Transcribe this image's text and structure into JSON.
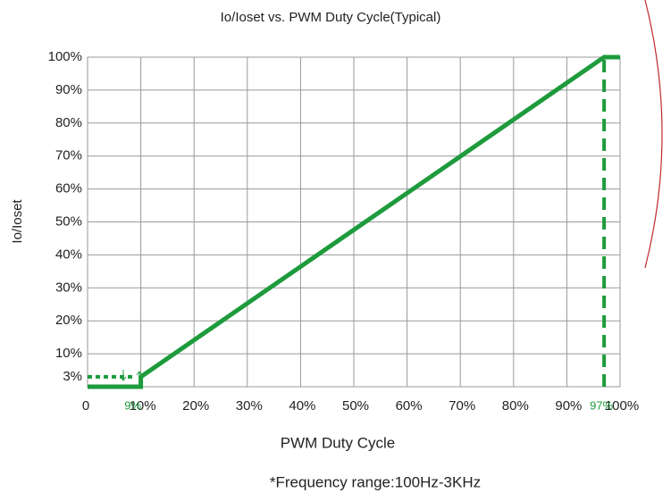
{
  "chart_data": {
    "type": "line",
    "title": "Io/Ioset  vs. PWM Duty Cycle(Typical)",
    "xlabel": "PWM Duty Cycle",
    "ylabel": "Io/Ioset",
    "footnote": "*Frequency range:100Hz-3KHz",
    "series": [
      {
        "color": "#1e9b3c",
        "style": "solid",
        "x": [
          0,
          10,
          10,
          97,
          100
        ],
        "values": [
          0,
          0,
          3,
          100,
          100
        ]
      },
      {
        "color": "#1e9b3c",
        "style": "dotted",
        "x": [
          0,
          9
        ],
        "values": [
          3,
          3
        ]
      },
      {
        "color": "#1e9b3c",
        "style": "dashed",
        "x": [
          97,
          97
        ],
        "values": [
          0,
          100
        ]
      }
    ],
    "annotations": [
      {
        "text": "9%",
        "x": 9
      },
      {
        "text": "97%",
        "x": 97
      }
    ],
    "xlim": [
      0,
      100
    ],
    "ylim": [
      0,
      100
    ],
    "xticks": [
      0,
      {
        "value": 10,
        "label": "10%"
      },
      {
        "value": 20,
        "label": "20%"
      },
      {
        "value": 30,
        "label": "30%"
      },
      {
        "value": 40,
        "label": "40%"
      },
      {
        "value": 50,
        "label": "50%"
      },
      {
        "value": 60,
        "label": "60%"
      },
      {
        "value": 70,
        "label": "70%"
      },
      {
        "value": 80,
        "label": "80%"
      },
      {
        "value": 90,
        "label": "90%"
      },
      {
        "value": 100,
        "label": "100%"
      }
    ],
    "yticks": [
      {
        "value": 3,
        "label": "3%"
      },
      {
        "value": 10,
        "label": "10%"
      },
      {
        "value": 20,
        "label": "20%"
      },
      {
        "value": 30,
        "label": "30%"
      },
      {
        "value": 40,
        "label": "40%"
      },
      {
        "value": 50,
        "label": "50%"
      },
      {
        "value": 60,
        "label": "60%"
      },
      {
        "value": 70,
        "label": "70%"
      },
      {
        "value": 80,
        "label": "80%"
      },
      {
        "value": 90,
        "label": "90%"
      },
      {
        "value": 100,
        "label": "100%"
      }
    ],
    "grid": true
  }
}
